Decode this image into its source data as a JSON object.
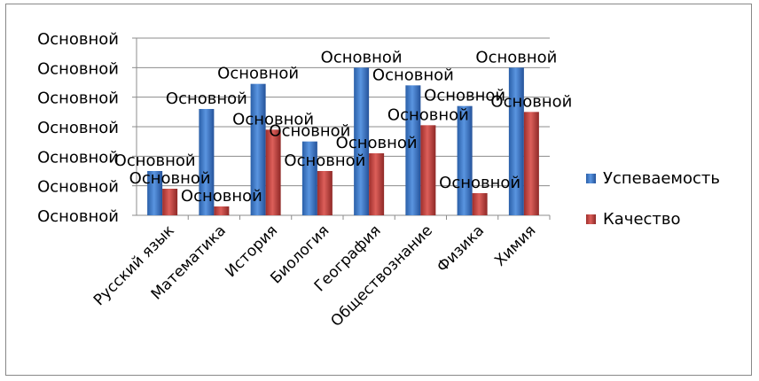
{
  "chart_data": {
    "type": "bar",
    "title": "",
    "xlabel": "",
    "ylabel": "",
    "categories": [
      "Русский язык",
      "Математика",
      "История",
      "Биология",
      "География",
      "Обществознание",
      "Физика",
      "Химия"
    ],
    "y_tick_labels": [
      "Основной",
      "Основной",
      "Основной",
      "Основной",
      "Основной",
      "Основной",
      "Основной"
    ],
    "ylim": [
      0,
      6
    ],
    "grid": true,
    "legend_position": "right",
    "data_label_text": "Основной",
    "series": [
      {
        "name": "Успеваемость",
        "color": "#3a78c8",
        "values": [
          1.5,
          3.6,
          4.45,
          2.5,
          5.0,
          4.4,
          3.7,
          5.0
        ]
      },
      {
        "name": "Качество",
        "color": "#c0403c",
        "values": [
          0.9,
          0.3,
          2.9,
          1.5,
          2.1,
          3.05,
          0.75,
          3.5
        ]
      }
    ]
  }
}
